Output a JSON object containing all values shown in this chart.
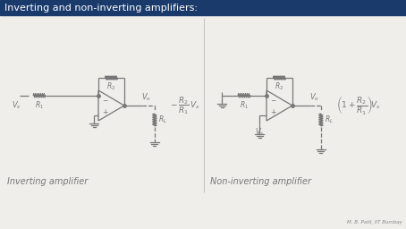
{
  "title": "Inverting and non-inverting amplifiers:",
  "title_bg": "#1a3a6b",
  "title_color": "#ffffff",
  "title_fontsize": 8,
  "bg_color": "#f0eeeb",
  "circuit_color": "#777777",
  "watermark": "M. B. Patil, IIT Bombay",
  "inv_label": "Inverting amplifier",
  "noninv_label": "Non-inverting amplifier",
  "div_color": "#bbbbbb",
  "figw": 4.54,
  "figh": 2.56
}
